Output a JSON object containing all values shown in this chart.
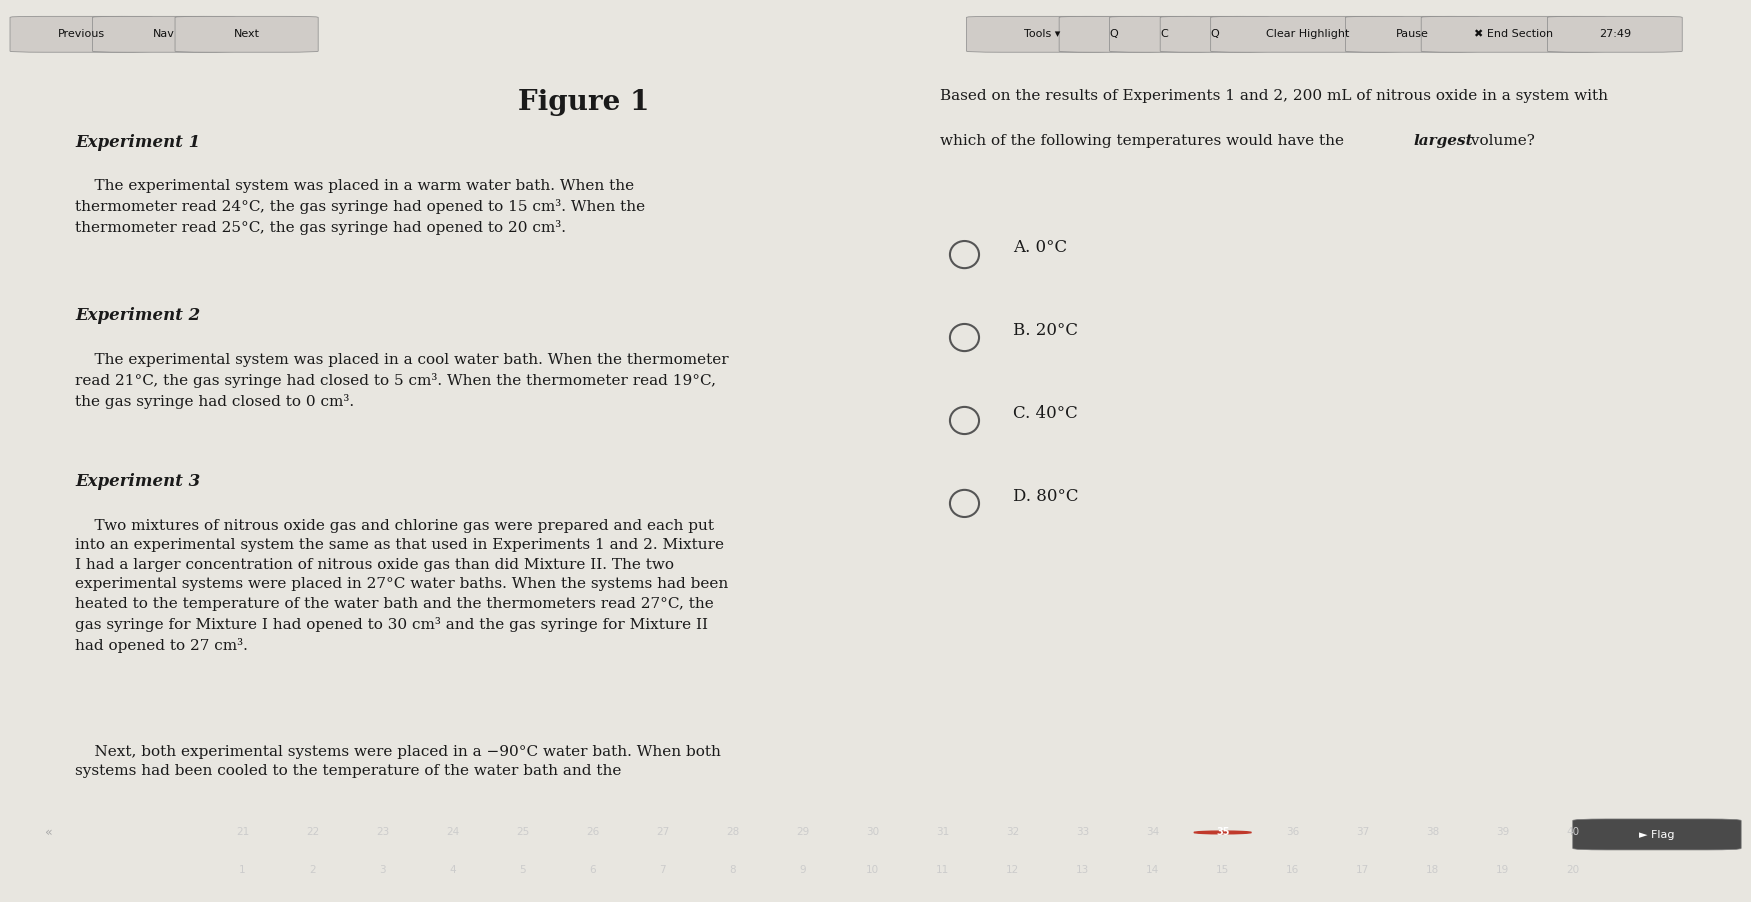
{
  "top_bar_color": "#2c2c2c",
  "top_bar_height": 0.055,
  "toolbar_buttons": [
    "Tools ▾",
    "Q",
    "C",
    "Q",
    "Clear Highlight",
    "Pause",
    "✖ End Section",
    "27:49"
  ],
  "nav_buttons": [
    "Previous",
    "Nav",
    "Next"
  ],
  "main_bg": "#e8e6e0",
  "left_panel_bg": "#f0ede8",
  "right_panel_bg": "#f0ede8",
  "figure_title": "Figure 1",
  "figure_title_fontsize": 20,
  "experiment1_header": "Experiment 1",
  "experiment1_text": "    The experimental system was placed in a warm water bath. When the\nthermometer read 24°C, the gas syringe had opened to 15 cm³. When the\nthermometer read 25°C, the gas syringe had opened to 20 cm³.",
  "experiment2_header": "Experiment 2",
  "experiment2_text": "    The experimental system was placed in a cool water bath. When the thermometer\nread 21°C, the gas syringe had closed to 5 cm³. When the thermometer read 19°C,\nthe gas syringe had closed to 0 cm³.",
  "experiment3_header": "Experiment 3",
  "experiment3_text": "    Two mixtures of nitrous oxide gas and chlorine gas were prepared and each put\ninto an experimental system the same as that used in Experiments 1 and 2. Mixture\nI had a larger concentration of nitrous oxide gas than did Mixture II. The two\nexperimental systems were placed in 27°C water baths. When the systems had been\nheated to the temperature of the water bath and the thermometers read 27°C, the\ngas syringe for Mixture I had opened to 30 cm³ and the gas syringe for Mixture II\nhad opened to 27 cm³.",
  "experiment3_continuation": "    Next, both experimental systems were placed in a −90°C water bath. When both\nsystems had been cooled to the temperature of the water bath and the",
  "question_text": "Based on the results of Experiments 1 and 2, 200 mL of nitrous oxide in a system with\nwhich of the following temperatures would have the largest volume?",
  "question_bold_word": "largest",
  "answer_choices": [
    "A. 0°C",
    "B. 20°C",
    "C. 40°C",
    "D. 80°C"
  ],
  "bottom_numbers_1": [
    "21",
    "22",
    "23",
    "24",
    "25",
    "26",
    "27",
    "28",
    "29",
    "30",
    "31",
    "32",
    "33",
    "34",
    "35",
    "36",
    "37",
    "38",
    "39",
    "40"
  ],
  "bottom_numbers_2": [
    "1",
    "2",
    "3",
    "4",
    "5",
    "6",
    "7",
    "8",
    "9",
    "10",
    "11",
    "12",
    "13",
    "14",
    "15",
    "16",
    "17",
    "18",
    "19",
    "20"
  ],
  "highlighted_number": "35",
  "highlighted_color": "#c0392b",
  "flag_button": "► Flag",
  "text_color": "#1a1a1a",
  "header_italic_color": "#1a1a1a",
  "body_fontsize": 11,
  "header_fontsize": 12
}
